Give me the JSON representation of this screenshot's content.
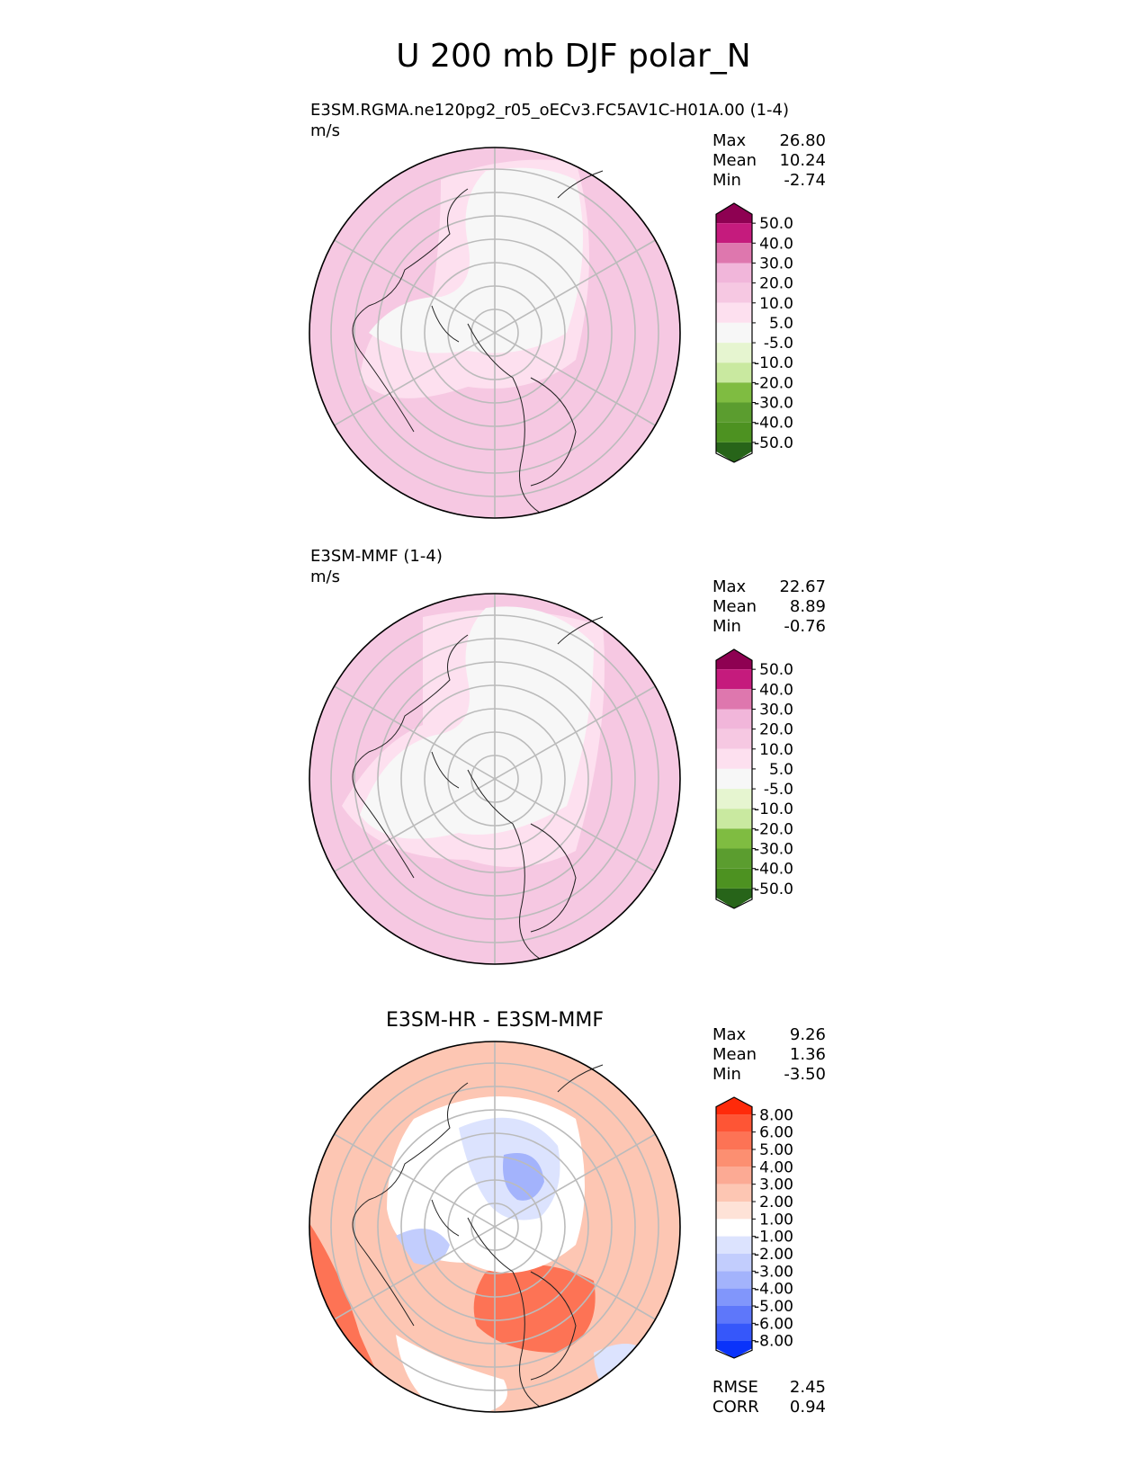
{
  "title": "U 200 mb DJF polar_N",
  "panels": [
    {
      "name": "E3SM.RGMA.ne120pg2_r05_oECv3.FC5AV1C-H01A.00 (1-4)",
      "units": "m/s",
      "stats": {
        "max_label": "Max",
        "max": "26.80",
        "mean_label": "Mean",
        "mean": "10.24",
        "min_label": "Min",
        "min": "-2.74"
      },
      "colorbar": {
        "ticks": [
          "50.0",
          "40.0",
          "30.0",
          "20.0",
          "10.0",
          "5.0",
          "-5.0",
          "-10.0",
          "-20.0",
          "-30.0",
          "-40.0",
          "-50.0"
        ],
        "colors": [
          "#8e0152",
          "#c51b7d",
          "#de77ae",
          "#f1b6da",
          "#f6c8e2",
          "#fde0ef",
          "#f7f7f7",
          "#e6f5d0",
          "#c9e9a0",
          "#7fbc41",
          "#5b9d2f",
          "#4d9221",
          "#276419"
        ]
      }
    },
    {
      "name": "E3SM-MMF (1-4)",
      "units": "m/s",
      "stats": {
        "max_label": "Max",
        "max": "22.67",
        "mean_label": "Mean",
        "mean": "8.89",
        "min_label": "Min",
        "min": "-0.76"
      },
      "colorbar": {
        "ticks": [
          "50.0",
          "40.0",
          "30.0",
          "20.0",
          "10.0",
          "5.0",
          "-5.0",
          "-10.0",
          "-20.0",
          "-30.0",
          "-40.0",
          "-50.0"
        ],
        "colors": [
          "#8e0152",
          "#c51b7d",
          "#de77ae",
          "#f1b6da",
          "#f6c8e2",
          "#fde0ef",
          "#f7f7f7",
          "#e6f5d0",
          "#c9e9a0",
          "#7fbc41",
          "#5b9d2f",
          "#4d9221",
          "#276419"
        ]
      }
    },
    {
      "name": "E3SM-HR - E3SM-MMF",
      "units": "",
      "stats": {
        "max_label": "Max",
        "max": "9.26",
        "mean_label": "Mean",
        "mean": "1.36",
        "min_label": "Min",
        "min": "-3.50"
      },
      "metrics": {
        "rmse_label": "RMSE",
        "rmse": "2.45",
        "corr_label": "CORR",
        "corr": "0.94"
      },
      "colorbar": {
        "ticks": [
          "8.00",
          "6.00",
          "5.00",
          "4.00",
          "3.00",
          "2.00",
          "1.00",
          "-1.00",
          "-2.00",
          "-3.00",
          "-4.00",
          "-5.00",
          "-6.00",
          "-8.00"
        ],
        "colors": [
          "#ff2a0a",
          "#fe5535",
          "#fd7355",
          "#fc8f71",
          "#fcaa94",
          "#fdc6b3",
          "#fee2d7",
          "#ffffff",
          "#dce3fe",
          "#c2cdfd",
          "#a3b3fc",
          "#8196fb",
          "#5e77fa",
          "#3657fa",
          "#0a33fa"
        ]
      }
    }
  ],
  "chart_data": [
    {
      "type": "heatmap",
      "projection": "north-polar-stereographic",
      "title": "E3SM.RGMA.ne120pg2_r05_oECv3.FC5AV1C-H01A.00 (1-4)",
      "units": "m/s",
      "max": 26.8,
      "mean": 10.24,
      "min": -2.74,
      "levels": [
        -50,
        -40,
        -30,
        -20,
        -10,
        -5,
        5,
        10,
        20,
        30,
        40,
        50
      ]
    },
    {
      "type": "heatmap",
      "projection": "north-polar-stereographic",
      "title": "E3SM-MMF (1-4)",
      "units": "m/s",
      "max": 22.67,
      "mean": 8.89,
      "min": -0.76,
      "levels": [
        -50,
        -40,
        -30,
        -20,
        -10,
        -5,
        5,
        10,
        20,
        30,
        40,
        50
      ]
    },
    {
      "type": "heatmap",
      "projection": "north-polar-stereographic",
      "title": "E3SM-HR - E3SM-MMF",
      "max": 9.26,
      "mean": 1.36,
      "min": -3.5,
      "rmse": 2.45,
      "corr": 0.94,
      "levels": [
        -8,
        -6,
        -5,
        -4,
        -3,
        -2,
        -1,
        1,
        2,
        3,
        4,
        5,
        6,
        8
      ]
    }
  ]
}
